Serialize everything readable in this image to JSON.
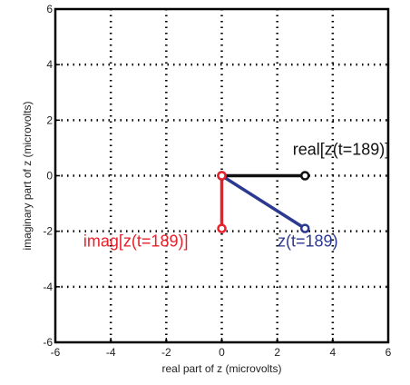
{
  "chart_data": {
    "type": "line",
    "title": "",
    "xlabel": "real part of z (microvolts)",
    "ylabel": "imaginary part of z (microvolts)",
    "xlim": [
      -6,
      6
    ],
    "ylim": [
      -6,
      6
    ],
    "xticks": [
      "-6",
      "-4",
      "-2",
      "0",
      "2",
      "4",
      "6"
    ],
    "yticks": [
      "-6",
      "-4",
      "-2",
      "0",
      "2",
      "4",
      "6"
    ],
    "grid": "dotted",
    "series": [
      {
        "name": "real[z(t=189)]",
        "color": "#111111",
        "points": [
          [
            0,
            0
          ],
          [
            3,
            0
          ]
        ]
      },
      {
        "name": "imag[z(t=189)]",
        "color": "#e8202a",
        "points": [
          [
            0,
            0
          ],
          [
            0,
            -1.9
          ]
        ]
      },
      {
        "name": "z(t=189)",
        "color": "#2b3990",
        "points": [
          [
            0,
            0
          ],
          [
            3,
            -1.9
          ]
        ]
      }
    ],
    "annotations": [
      {
        "text": "real[z(t=189)]",
        "x": 4.3,
        "y": 0.75,
        "color": "#111111"
      },
      {
        "text": "imag[z(t=189)]",
        "x": -3.1,
        "y": -2.55,
        "color": "#e8202a"
      },
      {
        "text": "z(t=189)",
        "x": 3.1,
        "y": -2.55,
        "color": "#2b3990"
      }
    ]
  }
}
